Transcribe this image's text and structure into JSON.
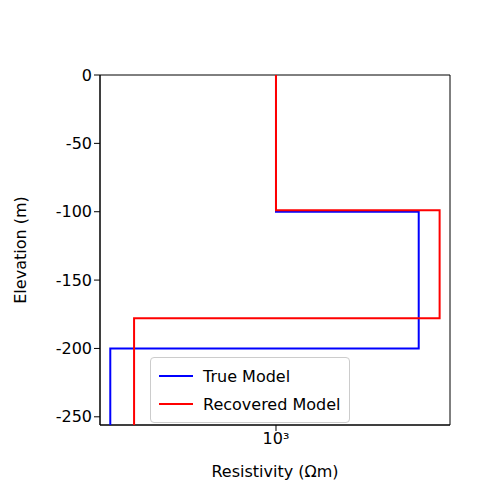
{
  "chart_data": {
    "type": "line",
    "xlabel": "Resistivity (Ωm)",
    "ylabel": "Elevation (m)",
    "log": "x",
    "xlim": [
      181,
      5420
    ],
    "xticks": [
      {
        "value": 1000,
        "label": "10³"
      }
    ],
    "ylim": [
      -256,
      0
    ],
    "yticks": [
      0,
      -50,
      -100,
      -150,
      -200,
      -250
    ],
    "legend": "lower left",
    "series": [
      {
        "name": "True Model",
        "color": "#0000ff",
        "x": [
          1000,
          1000,
          4000,
          4000,
          200,
          200
        ],
        "y": [
          0,
          -100,
          -100,
          -200,
          -200,
          -256
        ]
      },
      {
        "name": "Recovered Model",
        "color": "#ff0000",
        "x": [
          1000,
          1000,
          4900,
          4900,
          252,
          252
        ],
        "y": [
          0,
          -99,
          -99,
          -178,
          -178,
          -256
        ]
      }
    ]
  }
}
